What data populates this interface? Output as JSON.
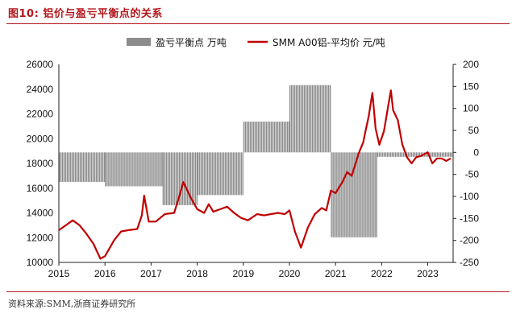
{
  "figure": {
    "title": "图10:  铝价与盈亏平衡点的关系",
    "source": "资料来源:SMM,浙商证券研究所"
  },
  "chart_data": {
    "type": "bar+line",
    "legend": [
      "盈亏平衡点 万吨",
      "SMM A00铝-平均价 元/吨"
    ],
    "colors": {
      "bar": "#8c8c8c",
      "line": "#c00000",
      "accent": "#b2171c"
    },
    "x_ticks": [
      "2015",
      "2016",
      "2017",
      "2018",
      "2019",
      "2020",
      "2021",
      "2022",
      "2023"
    ],
    "x_range": [
      2015.0,
      2023.55
    ],
    "y_left": {
      "ticks": [
        "10000",
        "12000",
        "14000",
        "16000",
        "18000",
        "20000",
        "22000",
        "24000",
        "26000"
      ],
      "range": [
        10000,
        26000
      ]
    },
    "y_right": {
      "ticks": [
        "-250",
        "-200",
        "-150",
        "-100",
        "-50",
        "0",
        "50",
        "100",
        "150",
        "200"
      ],
      "range": [
        -250,
        200
      ]
    },
    "bar_segments": [
      {
        "x0": 2015.0,
        "x1": 2016.0,
        "value": -67
      },
      {
        "x0": 2016.0,
        "x1": 2017.25,
        "value": -77
      },
      {
        "x0": 2017.25,
        "x1": 2018.0,
        "value": -120
      },
      {
        "x0": 2018.0,
        "x1": 2019.0,
        "value": -97
      },
      {
        "x0": 2019.0,
        "x1": 2020.0,
        "value": 70
      },
      {
        "x0": 2020.0,
        "x1": 2020.9,
        "value": 153
      },
      {
        "x0": 2020.9,
        "x1": 2021.9,
        "value": -193
      },
      {
        "x0": 2021.9,
        "x1": 2023.55,
        "value": -10
      }
    ],
    "series": [
      {
        "name": "SMM A00铝-平均价 元/吨",
        "points": [
          [
            2015.0,
            12600
          ],
          [
            2015.15,
            13000
          ],
          [
            2015.3,
            13400
          ],
          [
            2015.45,
            13000
          ],
          [
            2015.6,
            12300
          ],
          [
            2015.75,
            11500
          ],
          [
            2015.9,
            10300
          ],
          [
            2016.0,
            10500
          ],
          [
            2016.2,
            11800
          ],
          [
            2016.35,
            12500
          ],
          [
            2016.5,
            12600
          ],
          [
            2016.7,
            12700
          ],
          [
            2016.8,
            13800
          ],
          [
            2016.85,
            15400
          ],
          [
            2016.95,
            13300
          ],
          [
            2017.1,
            13300
          ],
          [
            2017.3,
            13900
          ],
          [
            2017.5,
            14000
          ],
          [
            2017.6,
            15200
          ],
          [
            2017.7,
            16500
          ],
          [
            2017.85,
            15300
          ],
          [
            2018.0,
            14300
          ],
          [
            2018.15,
            14000
          ],
          [
            2018.25,
            14700
          ],
          [
            2018.35,
            14100
          ],
          [
            2018.5,
            14300
          ],
          [
            2018.65,
            14500
          ],
          [
            2018.8,
            14000
          ],
          [
            2018.95,
            13600
          ],
          [
            2019.1,
            13400
          ],
          [
            2019.3,
            13900
          ],
          [
            2019.45,
            13800
          ],
          [
            2019.6,
            13900
          ],
          [
            2019.75,
            14000
          ],
          [
            2019.9,
            13900
          ],
          [
            2020.0,
            14200
          ],
          [
            2020.12,
            12500
          ],
          [
            2020.25,
            11200
          ],
          [
            2020.4,
            12800
          ],
          [
            2020.55,
            13900
          ],
          [
            2020.7,
            14400
          ],
          [
            2020.8,
            14200
          ],
          [
            2020.9,
            15800
          ],
          [
            2021.0,
            15600
          ],
          [
            2021.15,
            16500
          ],
          [
            2021.25,
            17300
          ],
          [
            2021.35,
            17000
          ],
          [
            2021.5,
            18800
          ],
          [
            2021.6,
            19700
          ],
          [
            2021.65,
            20600
          ],
          [
            2021.72,
            21800
          ],
          [
            2021.8,
            23700
          ],
          [
            2021.87,
            20800
          ],
          [
            2021.95,
            19500
          ],
          [
            2022.05,
            20600
          ],
          [
            2022.15,
            22800
          ],
          [
            2022.2,
            23900
          ],
          [
            2022.25,
            22300
          ],
          [
            2022.35,
            21500
          ],
          [
            2022.45,
            19500
          ],
          [
            2022.55,
            18500
          ],
          [
            2022.65,
            18000
          ],
          [
            2022.75,
            18500
          ],
          [
            2022.85,
            18600
          ],
          [
            2023.0,
            18900
          ],
          [
            2023.1,
            18000
          ],
          [
            2023.2,
            18400
          ],
          [
            2023.3,
            18400
          ],
          [
            2023.4,
            18200
          ],
          [
            2023.5,
            18400
          ]
        ]
      }
    ]
  }
}
